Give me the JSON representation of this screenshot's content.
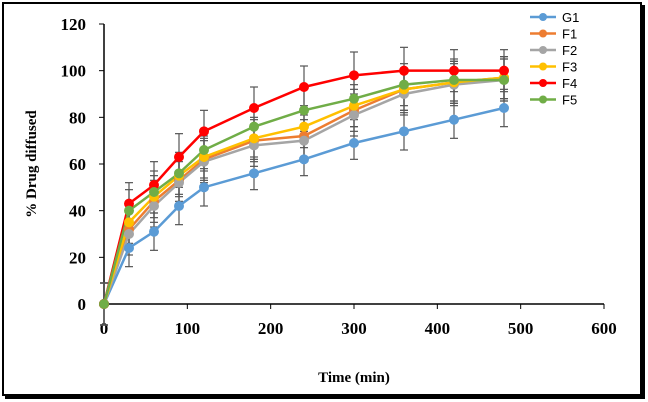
{
  "chart_data": {
    "type": "line",
    "title": "",
    "xlabel": "Time (min)",
    "ylabel": "% Drug diffused",
    "xlim": [
      0,
      600
    ],
    "ylim": [
      0,
      120
    ],
    "xticks": [
      0,
      100,
      200,
      300,
      400,
      500,
      600
    ],
    "yticks": [
      0,
      20,
      40,
      60,
      80,
      100,
      120
    ],
    "grid": false,
    "legend_position": "top-right",
    "x": [
      0,
      30,
      60,
      90,
      120,
      180,
      240,
      300,
      360,
      420,
      480
    ],
    "series": [
      {
        "name": "G1",
        "color": "#5B9BD5",
        "values": [
          0,
          24,
          31,
          42,
          50,
          56,
          62,
          69,
          74,
          79,
          84
        ],
        "error": [
          9,
          8,
          8,
          8,
          8,
          7,
          7,
          7,
          8,
          8,
          8
        ]
      },
      {
        "name": "F1",
        "color": "#ED7D31",
        "values": [
          0,
          32,
          44,
          53,
          62,
          70,
          72,
          83,
          92,
          95,
          97
        ],
        "error": [
          9,
          9,
          9,
          9,
          9,
          9,
          9,
          9,
          9,
          9,
          9
        ]
      },
      {
        "name": "F2",
        "color": "#A5A5A5",
        "values": [
          0,
          30,
          42,
          52,
          61,
          68,
          70,
          81,
          90,
          94,
          96
        ],
        "error": [
          9,
          9,
          9,
          9,
          9,
          9,
          9,
          9,
          9,
          9,
          9
        ]
      },
      {
        "name": "F3",
        "color": "#FFC000",
        "values": [
          0,
          35,
          46,
          55,
          63,
          71,
          76,
          85,
          92,
          95,
          97
        ],
        "error": [
          9,
          9,
          9,
          9,
          9,
          9,
          9,
          9,
          9,
          9,
          9
        ]
      },
      {
        "name": "F4",
        "color": "#FF0000",
        "values": [
          0,
          43,
          51,
          63,
          74,
          84,
          93,
          98,
          100,
          100,
          100
        ],
        "error": [
          9,
          9,
          10,
          10,
          9,
          9,
          9,
          10,
          10,
          9,
          9
        ]
      },
      {
        "name": "F5",
        "color": "#70AD47",
        "values": [
          0,
          40,
          48,
          56,
          66,
          76,
          83,
          88,
          94,
          96,
          96
        ],
        "error": [
          9,
          9,
          9,
          9,
          9,
          9,
          9,
          9,
          9,
          9,
          9
        ]
      }
    ]
  }
}
